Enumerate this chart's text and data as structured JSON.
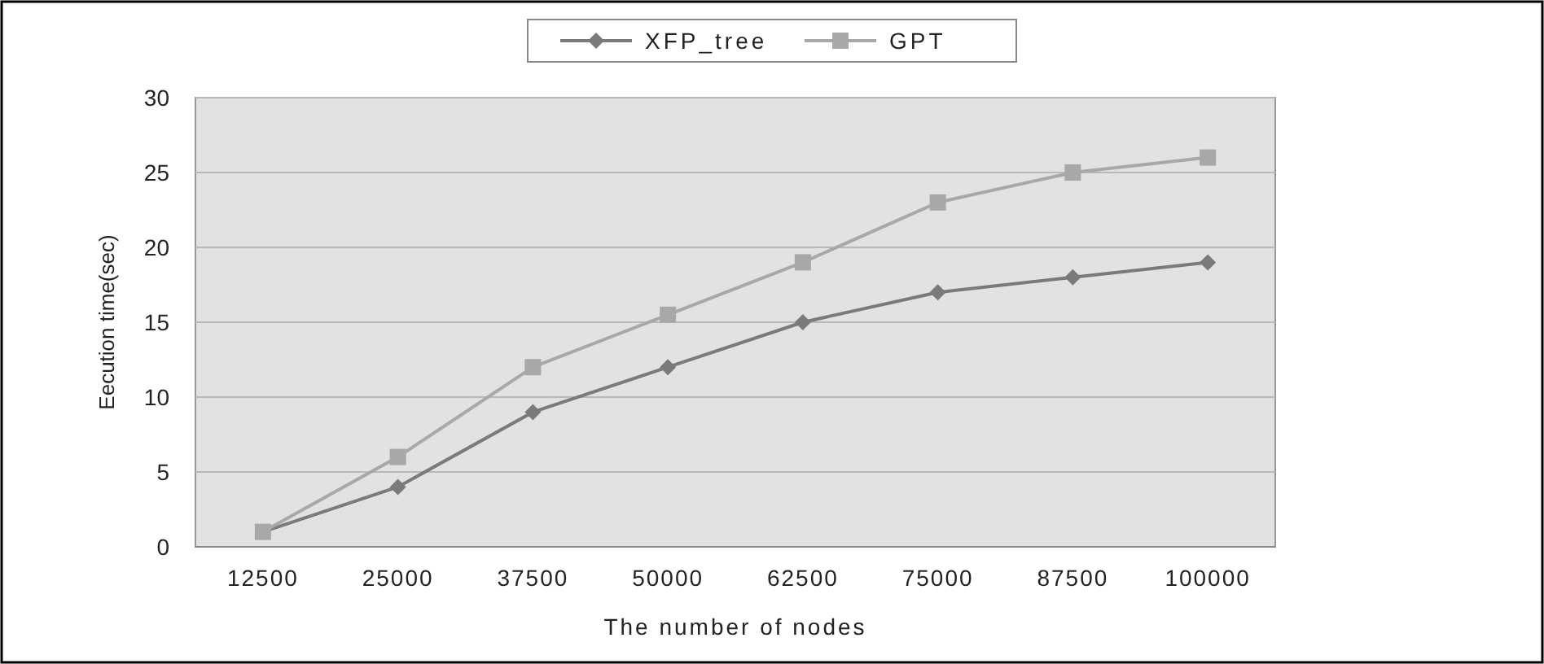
{
  "chart_data": {
    "type": "line",
    "xlabel": "The number of nodes",
    "ylabel": "Eecution time(sec)",
    "categories": [
      "12500",
      "25000",
      "37500",
      "50000",
      "62500",
      "75000",
      "87500",
      "100000"
    ],
    "series": [
      {
        "name": "XFP_tree",
        "color": "#7a7a7a",
        "marker": "diamond",
        "values": [
          1,
          4,
          9,
          12,
          15,
          17,
          18,
          19
        ]
      },
      {
        "name": "GPT",
        "color": "#a8a8a8",
        "marker": "square",
        "values": [
          1,
          6,
          12,
          15.5,
          19,
          23,
          25,
          26
        ]
      }
    ],
    "ylim": [
      0,
      30
    ],
    "yticks": [
      0,
      5,
      10,
      15,
      20,
      25,
      30
    ],
    "grid": "y",
    "legend": "top"
  }
}
